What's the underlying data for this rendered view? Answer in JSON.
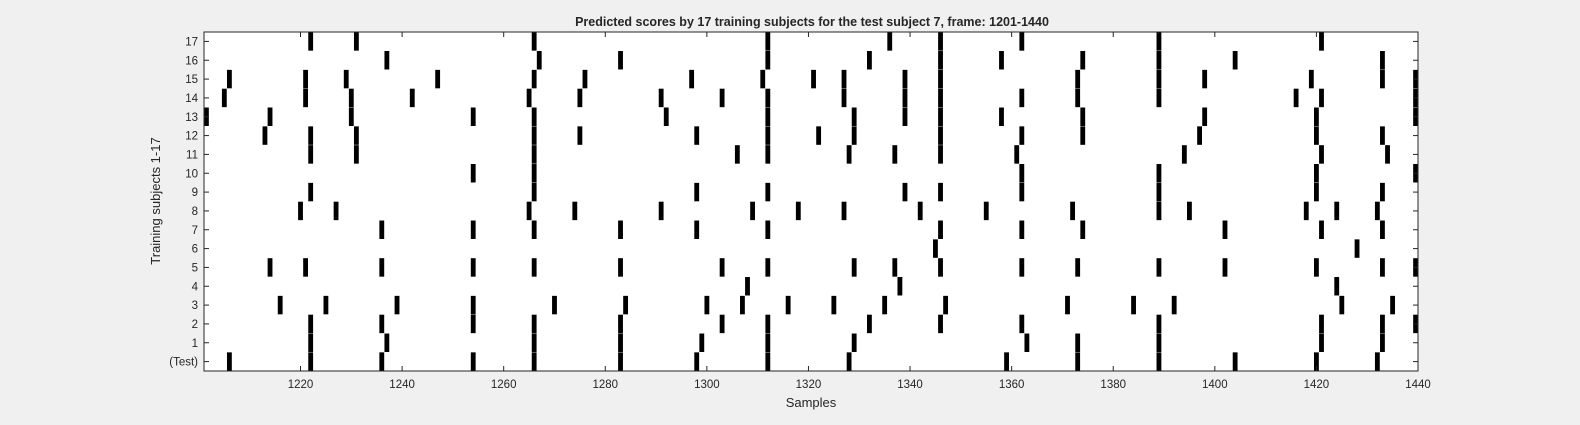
{
  "chart_data": {
    "type": "raster",
    "title": "Predicted scores by 17 training subjects for the test subject 7, frame: 1201-1440",
    "xlabel": "Samples",
    "ylabel": "Training subjects 1-17",
    "xlim": [
      1201,
      1440
    ],
    "x_ticks": [
      1220,
      1240,
      1260,
      1280,
      1300,
      1320,
      1340,
      1360,
      1380,
      1400,
      1420,
      1440
    ],
    "rows": [
      "(Test)",
      "1",
      "2",
      "3",
      "4",
      "5",
      "6",
      "7",
      "8",
      "9",
      "10",
      "11",
      "12",
      "13",
      "14",
      "15",
      "16",
      "17"
    ],
    "grid": false,
    "series": [
      {
        "name": "(Test)",
        "events": [
          1206,
          1222,
          1236,
          1254,
          1266,
          1283,
          1298,
          1312,
          1328,
          1359,
          1373,
          1389,
          1404,
          1420,
          1432
        ]
      },
      {
        "name": "1",
        "events": [
          1222,
          1237,
          1266,
          1283,
          1299,
          1312,
          1329,
          1363,
          1373,
          1389,
          1421,
          1433
        ]
      },
      {
        "name": "2",
        "events": [
          1222,
          1236,
          1254,
          1266,
          1283,
          1303,
          1312,
          1332,
          1346,
          1362,
          1389,
          1421,
          1433,
          1440
        ]
      },
      {
        "name": "3",
        "events": [
          1216,
          1225,
          1239,
          1254,
          1270,
          1284,
          1300,
          1307,
          1316,
          1325,
          1335,
          1347,
          1371,
          1384,
          1392,
          1425,
          1435
        ]
      },
      {
        "name": "4",
        "events": [
          1308,
          1338,
          1424
        ]
      },
      {
        "name": "5",
        "events": [
          1214,
          1221,
          1236,
          1254,
          1266,
          1283,
          1303,
          1312,
          1329,
          1337,
          1346,
          1362,
          1373,
          1389,
          1402,
          1420,
          1433,
          1440
        ]
      },
      {
        "name": "6",
        "events": [
          1345,
          1428
        ]
      },
      {
        "name": "7",
        "events": [
          1236,
          1254,
          1266,
          1283,
          1298,
          1312,
          1346,
          1362,
          1374,
          1402,
          1421,
          1433
        ]
      },
      {
        "name": "8",
        "events": [
          1220,
          1227,
          1265,
          1274,
          1291,
          1309,
          1318,
          1327,
          1342,
          1355,
          1372,
          1389,
          1395,
          1418,
          1424,
          1432
        ]
      },
      {
        "name": "9",
        "events": [
          1222,
          1266,
          1298,
          1312,
          1339,
          1346,
          1362,
          1389,
          1420,
          1433
        ]
      },
      {
        "name": "10",
        "events": [
          1254,
          1266,
          1362,
          1389,
          1420,
          1440
        ]
      },
      {
        "name": "11",
        "events": [
          1222,
          1231,
          1266,
          1306,
          1312,
          1328,
          1337,
          1346,
          1361,
          1394,
          1421,
          1434
        ]
      },
      {
        "name": "12",
        "events": [
          1213,
          1222,
          1231,
          1266,
          1275,
          1298,
          1312,
          1322,
          1329,
          1346,
          1362,
          1374,
          1397,
          1420,
          1433
        ]
      },
      {
        "name": "13",
        "events": [
          1201,
          1214,
          1230,
          1254,
          1266,
          1292,
          1312,
          1329,
          1339,
          1346,
          1358,
          1374,
          1398,
          1420,
          1440
        ]
      },
      {
        "name": "14",
        "events": [
          1205,
          1221,
          1230,
          1242,
          1265,
          1275,
          1291,
          1303,
          1312,
          1327,
          1339,
          1346,
          1362,
          1373,
          1389,
          1416,
          1421,
          1440
        ]
      },
      {
        "name": "15",
        "events": [
          1206,
          1221,
          1229,
          1247,
          1266,
          1276,
          1297,
          1311,
          1321,
          1327,
          1339,
          1346,
          1373,
          1389,
          1398,
          1419,
          1433,
          1440
        ]
      },
      {
        "name": "16",
        "events": [
          1237,
          1267,
          1283,
          1312,
          1332,
          1346,
          1358,
          1374,
          1389,
          1404,
          1433
        ]
      },
      {
        "name": "17",
        "events": [
          1222,
          1231,
          1266,
          1312,
          1336,
          1346,
          1362,
          1389,
          1421
        ]
      }
    ]
  }
}
